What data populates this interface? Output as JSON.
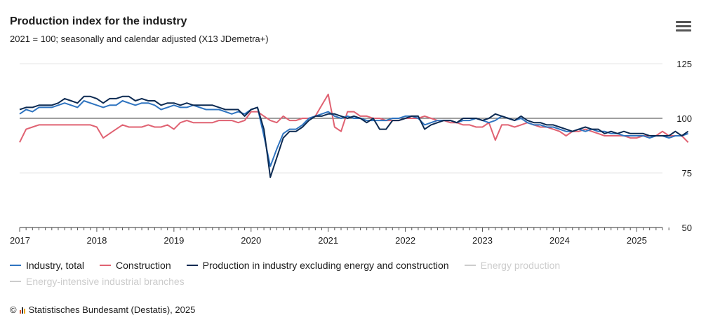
{
  "title": "Production index for the industry",
  "subtitle": "2021 = 100; seasonally and calendar adjusted (X13 JDemetra+)",
  "menu_icon": "hamburger-menu-icon",
  "source": {
    "copyright_symbol": "©",
    "logo_icon": "destatis-bar-logo-icon",
    "text": "Statistisches Bundesamt (Destatis), 2025"
  },
  "colors": {
    "industry": "#2f74c0",
    "construction": "#e06272",
    "excl": "#0c2a52",
    "hidden": "#cccccc",
    "baseline": "#666666",
    "grid": "#e6e6e6"
  },
  "chart_data": {
    "type": "line",
    "title": "Production index for the industry",
    "subtitle": "2021 = 100; seasonally and calendar adjusted (X13 JDemetra+)",
    "x_start": "2017-01",
    "frequency": "monthly",
    "xlabels": [
      "2017",
      "2018",
      "2019",
      "2020",
      "2021",
      "2022",
      "2023",
      "2024",
      "2025"
    ],
    "ylim": [
      50,
      125
    ],
    "yticks": [
      "125",
      "100",
      "75",
      "50"
    ],
    "reference_line": 100,
    "legend_position": "bottom",
    "series": [
      {
        "name": "Industry, total",
        "key": "industry",
        "visible": true,
        "values": [
          102,
          104,
          103,
          105,
          105,
          105,
          106,
          107,
          106,
          105,
          108,
          107,
          106,
          105,
          106,
          106,
          108,
          107,
          106,
          107,
          107,
          106,
          104,
          105,
          106,
          105,
          105,
          106,
          105,
          104,
          104,
          104,
          103,
          102,
          103,
          102,
          104,
          105,
          92,
          78,
          86,
          93,
          95,
          95,
          97,
          100,
          101,
          102,
          103,
          101,
          100,
          101,
          100,
          100,
          99,
          99,
          99,
          99,
          100,
          100,
          101,
          101,
          100,
          97,
          98,
          99,
          99,
          99,
          98,
          99,
          99,
          100,
          99,
          98,
          99,
          101,
          100,
          99,
          100,
          98,
          97,
          97,
          96,
          96,
          95,
          94,
          94,
          95,
          94,
          95,
          94,
          94,
          93,
          93,
          92,
          92,
          92,
          92,
          91,
          92,
          92,
          91,
          92,
          92,
          93
        ]
      },
      {
        "name": "Construction",
        "key": "construction",
        "visible": true,
        "values": [
          89,
          95,
          96,
          97,
          97,
          97,
          97,
          97,
          97,
          97,
          97,
          97,
          96,
          91,
          93,
          95,
          97,
          96,
          96,
          96,
          97,
          96,
          96,
          97,
          95,
          98,
          99,
          98,
          98,
          98,
          98,
          99,
          99,
          99,
          98,
          99,
          103,
          103,
          101,
          99,
          98,
          101,
          99,
          99,
          100,
          100,
          101,
          106,
          111,
          96,
          94,
          103,
          103,
          101,
          101,
          100,
          100,
          99,
          99,
          99,
          100,
          100,
          100,
          101,
          100,
          99,
          99,
          98,
          98,
          97,
          97,
          96,
          96,
          98,
          90,
          97,
          97,
          96,
          97,
          98,
          97,
          96,
          96,
          95,
          94,
          92,
          94,
          94,
          95,
          94,
          93,
          92,
          92,
          92,
          92,
          91,
          91,
          92,
          92,
          92,
          94,
          92,
          92,
          92,
          89
        ]
      },
      {
        "name": "Production in industry excluding energy and construction",
        "key": "excl",
        "visible": true,
        "values": [
          104,
          105,
          105,
          106,
          106,
          106,
          107,
          109,
          108,
          107,
          110,
          110,
          109,
          107,
          109,
          109,
          110,
          110,
          108,
          109,
          108,
          108,
          106,
          107,
          107,
          106,
          107,
          106,
          106,
          106,
          106,
          105,
          104,
          104,
          104,
          101,
          104,
          105,
          95,
          73,
          82,
          91,
          94,
          94,
          96,
          99,
          101,
          101,
          102,
          102,
          101,
          100,
          101,
          100,
          98,
          100,
          95,
          95,
          99,
          99,
          100,
          101,
          101,
          95,
          97,
          98,
          99,
          99,
          98,
          100,
          100,
          100,
          99,
          100,
          102,
          101,
          100,
          99,
          101,
          99,
          98,
          98,
          97,
          97,
          96,
          95,
          94,
          95,
          96,
          95,
          95,
          93,
          94,
          93,
          94,
          93,
          93,
          93,
          92,
          92,
          92,
          92,
          94,
          92,
          94
        ]
      },
      {
        "name": "Energy production",
        "key": "energy",
        "visible": false,
        "values": []
      },
      {
        "name": "Energy-intensive industrial branches",
        "key": "energy_intensive",
        "visible": false,
        "values": []
      }
    ]
  }
}
